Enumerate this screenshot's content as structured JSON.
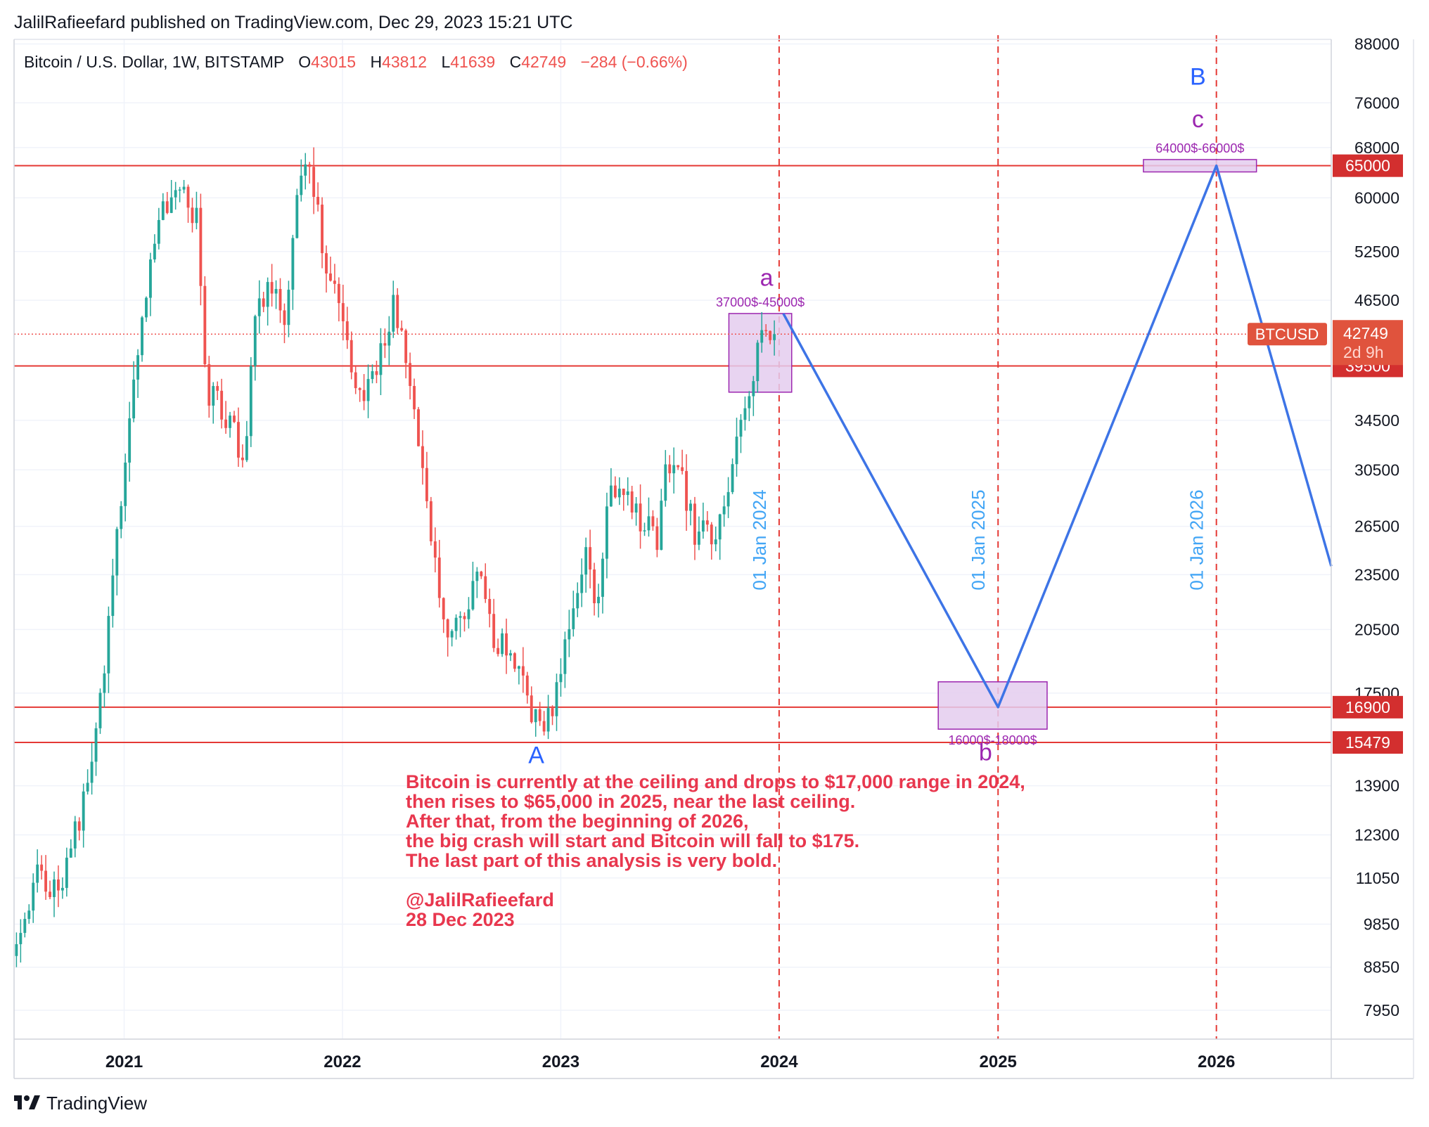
{
  "header": {
    "publisher": "JalilRafieefard published on TradingView.com, Dec 29, 2023 15:21 UTC"
  },
  "legend": {
    "symbol": "Bitcoin / U.S. Dollar, 1W, BITSTAMP",
    "o_label": "O",
    "o_value": "43015",
    "h_label": "H",
    "h_value": "43812",
    "l_label": "L",
    "l_value": "41639",
    "c_label": "C",
    "c_value": "42749",
    "change": "−284 (−0.66%)"
  },
  "footer": {
    "brand": "TradingView"
  },
  "colors": {
    "up": "#26a69a",
    "down": "#ef5350",
    "hline": "#e53935",
    "vline": "#e53935",
    "projection": "#3d74e6",
    "box_fill": "#e4cdee",
    "box_stroke": "#9c27b0",
    "wave_purple": "#9c27b0",
    "wave_blue": "#2962ff",
    "note": "#e8374e",
    "date_label": "#42a5f5",
    "grid": "#f0f3fa",
    "text": "#131722"
  },
  "chart_data": {
    "type": "candlestick",
    "symbol": "BTCUSD",
    "timeframe": "1W",
    "exchange": "BITSTAMP",
    "y_scale": "log",
    "ylim": [
      7400,
      89000
    ],
    "xlim": [
      "2020-07-01",
      "2026-07-12"
    ],
    "x_ticks": [
      {
        "date": "2021-01-01",
        "label": "2021"
      },
      {
        "date": "2022-01-01",
        "label": "2022"
      },
      {
        "date": "2023-01-01",
        "label": "2023"
      },
      {
        "date": "2024-01-01",
        "label": "2024"
      },
      {
        "date": "2025-01-01",
        "label": "2025"
      },
      {
        "date": "2026-01-01",
        "label": "2026"
      }
    ],
    "y_ticks": [
      88000,
      76000,
      68000,
      60000,
      52500,
      46500,
      34500,
      30500,
      26500,
      23500,
      20500,
      17500,
      13900,
      12300,
      11050,
      9850,
      8850,
      7950
    ],
    "price_anchors": [
      [
        "2020-07-05",
        9100
      ],
      [
        "2020-08-10",
        11300
      ],
      [
        "2020-09-14",
        10600
      ],
      [
        "2020-10-19",
        12900
      ],
      [
        "2020-11-09",
        15400
      ],
      [
        "2020-11-30",
        19200
      ],
      [
        "2020-12-21",
        26500
      ],
      [
        "2021-01-11",
        35500
      ],
      [
        "2021-02-08",
        47000
      ],
      [
        "2021-02-22",
        56000
      ],
      [
        "2021-03-15",
        58500
      ],
      [
        "2021-04-12",
        60500
      ],
      [
        "2021-05-03",
        57000
      ],
      [
        "2021-05-17",
        37500
      ],
      [
        "2021-06-07",
        36000
      ],
      [
        "2021-06-28",
        34500
      ],
      [
        "2021-07-19",
        30500
      ],
      [
        "2021-08-09",
        45000
      ],
      [
        "2021-09-06",
        49000
      ],
      [
        "2021-09-27",
        42500
      ],
      [
        "2021-10-18",
        61000
      ],
      [
        "2021-11-08",
        64500
      ],
      [
        "2021-12-06",
        50000
      ],
      [
        "2021-12-27",
        47500
      ],
      [
        "2022-01-24",
        36500
      ],
      [
        "2022-02-21",
        38500
      ],
      [
        "2022-03-28",
        46500
      ],
      [
        "2022-04-18",
        40000
      ],
      [
        "2022-05-16",
        29500
      ],
      [
        "2022-06-13",
        22500
      ],
      [
        "2022-06-27",
        19500
      ],
      [
        "2022-08-15",
        23500
      ],
      [
        "2022-09-12",
        20000
      ],
      [
        "2022-10-17",
        19200
      ],
      [
        "2022-11-07",
        17000
      ],
      [
        "2022-11-21",
        16200
      ],
      [
        "2022-12-19",
        16800
      ],
      [
        "2023-01-16",
        20800
      ],
      [
        "2023-02-13",
        24500
      ],
      [
        "2023-03-06",
        21500
      ],
      [
        "2023-03-20",
        28000
      ],
      [
        "2023-04-10",
        30000
      ],
      [
        "2023-05-15",
        27000
      ],
      [
        "2023-06-12",
        25500
      ],
      [
        "2023-06-26",
        30500
      ],
      [
        "2023-07-24",
        29500
      ],
      [
        "2023-08-14",
        26000
      ],
      [
        "2023-09-11",
        26000
      ],
      [
        "2023-10-02",
        27800
      ],
      [
        "2023-10-23",
        34500
      ],
      [
        "2023-11-13",
        37000
      ],
      [
        "2023-12-04",
        43800
      ],
      [
        "2023-12-25",
        42749
      ]
    ],
    "horizontal_lines": [
      65000,
      39500,
      16900,
      15479
    ],
    "vertical_lines": [
      "2024-01-01",
      "2025-01-01",
      "2026-01-01"
    ],
    "vertical_line_labels": [
      "01 Jan 2024",
      "01 Jan 2025",
      "01 Jan 2026"
    ],
    "last_price": {
      "symbol": "BTCUSD",
      "value": "42749",
      "countdown": "2d 9h",
      "value_num": 42749
    },
    "price_labels": [
      "65000",
      "39500",
      "16900",
      "15479"
    ],
    "zones": [
      {
        "label": "37000$-45000$",
        "from": "2023-10-09",
        "to": "2024-01-22",
        "low": 37000,
        "high": 45000
      },
      {
        "label": "16000$-18000$",
        "from": "2024-09-23",
        "to": "2025-03-24",
        "low": 16000,
        "high": 18000
      },
      {
        "label": "64000$-66000$",
        "from": "2025-09-01",
        "to": "2026-03-09",
        "low": 64000,
        "high": 66000
      }
    ],
    "projection_path": [
      [
        "2024-01-08",
        45000
      ],
      [
        "2025-01-01",
        16900
      ],
      [
        "2026-01-01",
        65000
      ],
      [
        "2026-07-12",
        24000
      ]
    ],
    "wave_labels": [
      {
        "text": "A",
        "date": "2022-11-21",
        "price": 14700,
        "color": "wave_blue"
      },
      {
        "text": "a",
        "date": "2023-12-11",
        "price": 48200,
        "color": "wave_purple"
      },
      {
        "text": "b",
        "date": "2024-12-11",
        "price": 14800,
        "color": "wave_purple"
      },
      {
        "text": "B",
        "date": "2025-12-01",
        "price": 79500,
        "color": "wave_blue"
      },
      {
        "text": "c",
        "date": "2025-12-01",
        "price": 71500,
        "color": "wave_purple"
      }
    ]
  },
  "note": {
    "lines": [
      "Bitcoin is currently at the ceiling and drops to $17,000 range in 2024,",
      "then rises to $65,000 in 2025, near the last ceiling.",
      "After that, from the beginning of 2026,",
      "the big crash will start and Bitcoin will fall to $175.",
      "The last part of this analysis is very bold."
    ],
    "author": "@JalilRafieefard",
    "date": "28 Dec 2023"
  }
}
